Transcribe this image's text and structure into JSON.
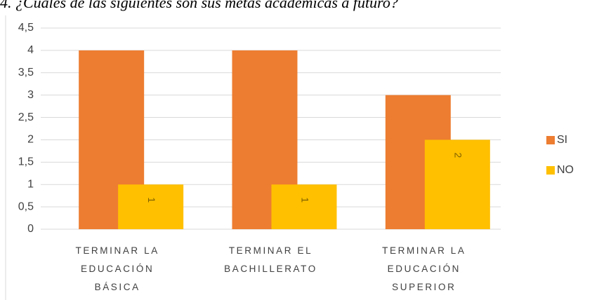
{
  "chart_data": {
    "type": "bar",
    "title": "4. ¿Cuáles de las siguientes son sus metas académicas a futuro?",
    "categories": [
      "TERMINAR LA EDUCACIÓN BÁSICA",
      "TERMINAR EL BACHILLERATO",
      "TERMINAR LA EDUCACIÓN SUPERIOR"
    ],
    "series": [
      {
        "name": "SI",
        "color": "#ed7d31",
        "values": [
          4,
          4,
          3
        ]
      },
      {
        "name": "NO",
        "color": "#ffc000",
        "values": [
          1,
          1,
          2
        ]
      }
    ],
    "ylim": [
      0,
      4.5
    ],
    "yticks": [
      0,
      {
        "value": 0.5,
        "label": "0,5"
      },
      1,
      {
        "value": 1.5,
        "label": "1,5"
      },
      2,
      {
        "value": 2.5,
        "label": "2,5"
      },
      3,
      {
        "value": 3.5,
        "label": "3,5"
      },
      4,
      {
        "value": 4.5,
        "label": "4,5"
      }
    ],
    "grid": true,
    "legend": "right"
  }
}
